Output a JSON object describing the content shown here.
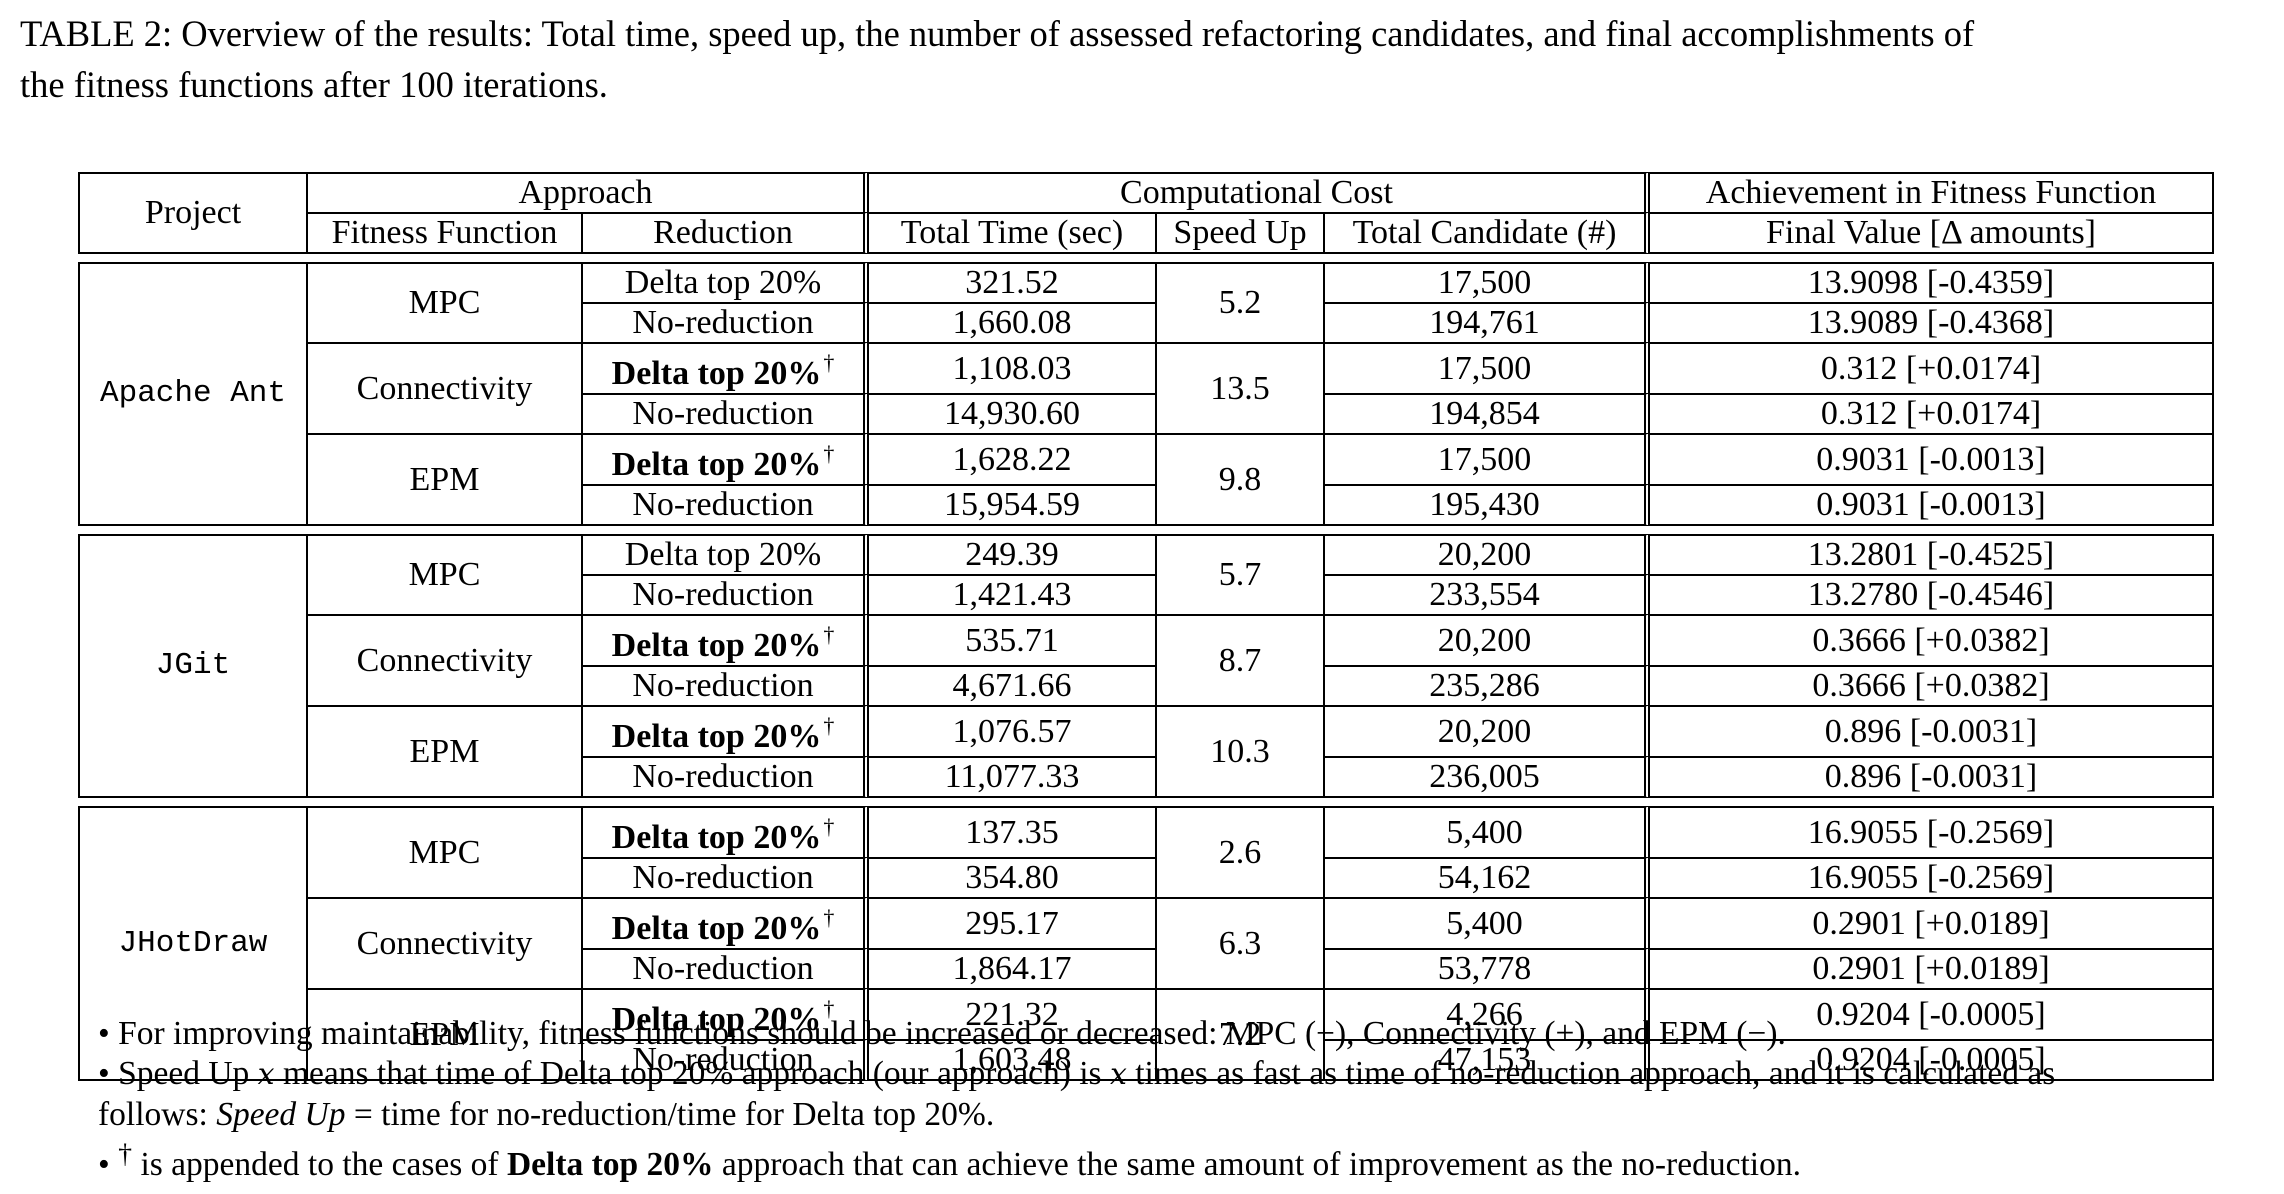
{
  "caption": {
    "line1": "TABLE 2: Overview of the results: Total time, speed up, the number of assessed refactoring candidates, and final accomplishments of",
    "line2": "the fitness functions after 100 iterations."
  },
  "header": {
    "project": "Project",
    "approach": "Approach",
    "fitness_function": "Fitness Function",
    "reduction": "Reduction",
    "computational_cost": "Computational Cost",
    "total_time": "Total Time (sec)",
    "speed_up": "Speed Up",
    "total_candidate": "Total Candidate (#)",
    "achievement": "Achievement in Fitness Function",
    "final_value": "Final Value [Δ amounts]"
  },
  "groups": [
    {
      "project": "Apache Ant",
      "fitness": [
        {
          "name": "MPC",
          "speed_up": "5.2",
          "rows": [
            {
              "reduction": "Delta top 20%",
              "bold": false,
              "dagger": "",
              "time": "321.52",
              "candidates": "17,500",
              "final": "13.9098 [-0.4359]"
            },
            {
              "reduction": "No-reduction",
              "bold": false,
              "dagger": "",
              "time": "1,660.08",
              "candidates": "194,761",
              "final": "13.9089 [-0.4368]"
            }
          ]
        },
        {
          "name": "Connectivity",
          "speed_up": "13.5",
          "rows": [
            {
              "reduction": "Delta top 20%",
              "bold": true,
              "dagger": "†",
              "time": "1,108.03",
              "candidates": "17,500",
              "final": "0.312 [+0.0174]"
            },
            {
              "reduction": "No-reduction",
              "bold": false,
              "dagger": "",
              "time": "14,930.60",
              "candidates": "194,854",
              "final": "0.312 [+0.0174]"
            }
          ]
        },
        {
          "name": "EPM",
          "speed_up": "9.8",
          "rows": [
            {
              "reduction": "Delta top 20%",
              "bold": true,
              "dagger": "†",
              "time": "1,628.22",
              "candidates": "17,500",
              "final": "0.9031 [-0.0013]"
            },
            {
              "reduction": "No-reduction",
              "bold": false,
              "dagger": "",
              "time": "15,954.59",
              "candidates": "195,430",
              "final": "0.9031 [-0.0013]"
            }
          ]
        }
      ]
    },
    {
      "project": "JGit",
      "fitness": [
        {
          "name": "MPC",
          "speed_up": "5.7",
          "rows": [
            {
              "reduction": "Delta top 20%",
              "bold": false,
              "dagger": "",
              "time": "249.39",
              "candidates": "20,200",
              "final": "13.2801 [-0.4525]"
            },
            {
              "reduction": "No-reduction",
              "bold": false,
              "dagger": "",
              "time": "1,421.43",
              "candidates": "233,554",
              "final": "13.2780 [-0.4546]"
            }
          ]
        },
        {
          "name": "Connectivity",
          "speed_up": "8.7",
          "rows": [
            {
              "reduction": "Delta top 20%",
              "bold": true,
              "dagger": "†",
              "time": "535.71",
              "candidates": "20,200",
              "final": "0.3666 [+0.0382]"
            },
            {
              "reduction": "No-reduction",
              "bold": false,
              "dagger": "",
              "time": "4,671.66",
              "candidates": "235,286",
              "final": "0.3666 [+0.0382]"
            }
          ]
        },
        {
          "name": "EPM",
          "speed_up": "10.3",
          "rows": [
            {
              "reduction": "Delta top 20%",
              "bold": true,
              "dagger": "†",
              "time": "1,076.57",
              "candidates": "20,200",
              "final": "0.896 [-0.0031]"
            },
            {
              "reduction": "No-reduction",
              "bold": false,
              "dagger": "",
              "time": "11,077.33",
              "candidates": "236,005",
              "final": "0.896 [-0.0031]"
            }
          ]
        }
      ]
    },
    {
      "project": "JHotDraw",
      "fitness": [
        {
          "name": "MPC",
          "speed_up": "2.6",
          "rows": [
            {
              "reduction": "Delta top 20%",
              "bold": true,
              "dagger": "†",
              "time": "137.35",
              "candidates": "5,400",
              "final": "16.9055 [-0.2569]"
            },
            {
              "reduction": "No-reduction",
              "bold": false,
              "dagger": "",
              "time": "354.80",
              "candidates": "54,162",
              "final": "16.9055 [-0.2569]"
            }
          ]
        },
        {
          "name": "Connectivity",
          "speed_up": "6.3",
          "rows": [
            {
              "reduction": "Delta top 20%",
              "bold": true,
              "dagger": "†",
              "time": "295.17",
              "candidates": "5,400",
              "final": "0.2901 [+0.0189]"
            },
            {
              "reduction": "No-reduction",
              "bold": false,
              "dagger": "",
              "time": "1,864.17",
              "candidates": "53,778",
              "final": "0.2901 [+0.0189]"
            }
          ]
        },
        {
          "name": "EPM",
          "speed_up": "7.2",
          "rows": [
            {
              "reduction": "Delta top 20%",
              "bold": true,
              "dagger": "†",
              "time": "221.32",
              "candidates": "4,266",
              "final": "0.9204 [-0.0005]"
            },
            {
              "reduction": "No-reduction",
              "bold": false,
              "dagger": "",
              "time": "1,603.48",
              "candidates": "47,153",
              "final": "0.9204 [-0.0005]"
            }
          ]
        }
      ]
    }
  ],
  "notes": {
    "bullet": "•",
    "note1": "For improving maintainability, fitness functions should be increased or decreased: MPC (−), Connectivity (+), and EPM (−).",
    "note2_a": "Speed Up ",
    "note2_x": "x",
    "note2_b": " means that time of Delta top 20% approach (our approach) is ",
    "note2_c": " times as fast as time of no-reduction approach, and it is calculated as",
    "note2_d": "follows: ",
    "note2_speed_up": "Speed Up",
    "note2_e": " = time for no-reduction/time for Delta top 20%.",
    "note3_dagger": "†",
    "note3_a": " is appended to the cases of ",
    "note3_bold": "Delta top 20%",
    "note3_b": " approach that can achieve the same amount of improvement as the no-reduction."
  }
}
